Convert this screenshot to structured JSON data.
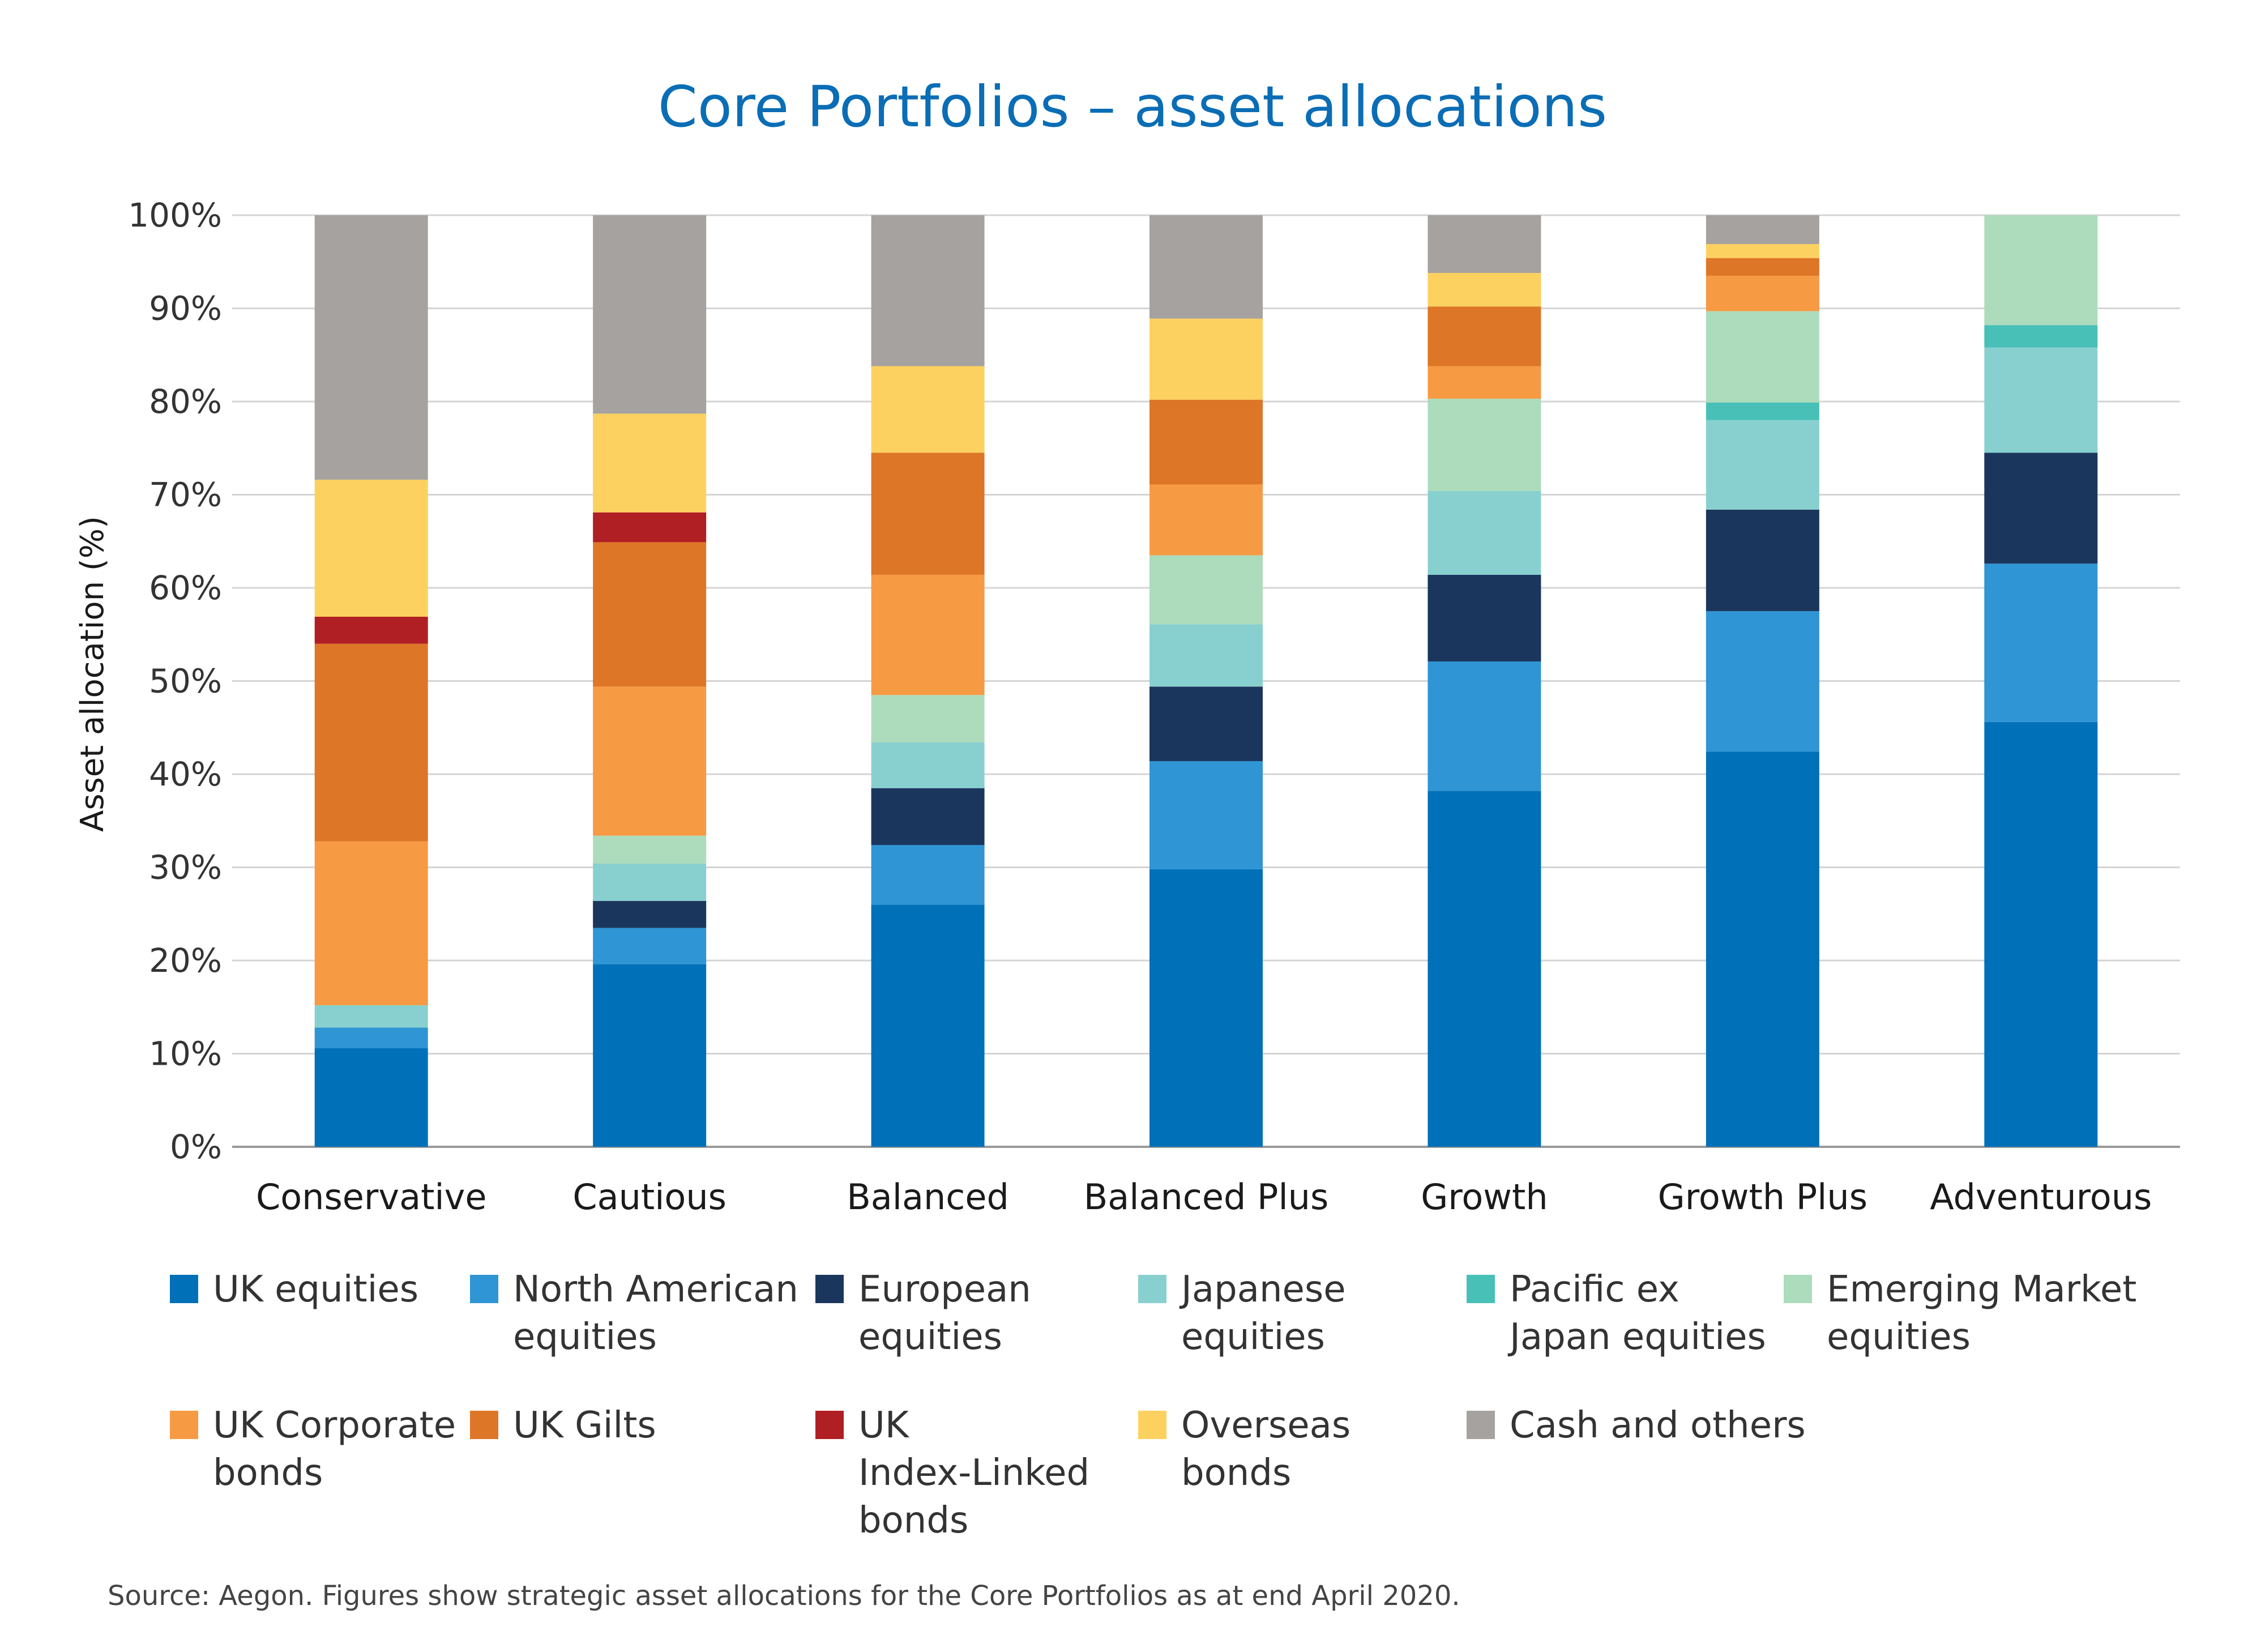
{
  "chart_data": {
    "type": "bar",
    "stacked": true,
    "title": "Core Portfolios – asset allocations",
    "ylabel": "Asset allocation (%)",
    "xlabel": "",
    "ylim": [
      0,
      100
    ],
    "yticks": [
      "0%",
      "10%",
      "20%",
      "30%",
      "40%",
      "50%",
      "60%",
      "70%",
      "80%",
      "90%",
      "100%"
    ],
    "grid": true,
    "legend_position": "bottom",
    "categories": [
      "Conservative",
      "Cautious",
      "Balanced",
      "Balanced Plus",
      "Growth",
      "Growth Plus",
      "Adventurous"
    ],
    "series": [
      {
        "name": "UK equities",
        "color": "#0070b8",
        "values": [
          10.6,
          19.6,
          26.0,
          29.8,
          38.2,
          42.4,
          45.6
        ]
      },
      {
        "name": "North American equities",
        "color": "#2f95d4",
        "values": [
          2.2,
          3.9,
          6.4,
          11.6,
          13.9,
          15.1,
          17.0
        ]
      },
      {
        "name": "European equities",
        "color": "#1b365d",
        "values": [
          0.0,
          2.9,
          6.1,
          8.0,
          9.3,
          10.9,
          11.9
        ]
      },
      {
        "name": "Japanese equities",
        "color": "#88d0cf",
        "values": [
          2.4,
          4.0,
          4.9,
          6.7,
          9.0,
          9.6,
          11.3
        ]
      },
      {
        "name": "Pacific ex Japan equities",
        "color": "#48c0b8",
        "values": [
          0.0,
          0.0,
          0.0,
          0.0,
          0.0,
          1.9,
          2.4
        ]
      },
      {
        "name": "Emerging Market equities",
        "color": "#acdcbc",
        "values": [
          0.0,
          3.0,
          5.1,
          7.4,
          9.9,
          9.8,
          11.8
        ]
      },
      {
        "name": "UK Corporate bonds",
        "color": "#f79a44",
        "values": [
          17.6,
          16.0,
          12.9,
          7.6,
          3.5,
          3.8,
          0.0
        ]
      },
      {
        "name": "UK Gilts",
        "color": "#dd7627",
        "values": [
          21.2,
          15.5,
          13.1,
          9.1,
          6.4,
          1.9,
          0.0
        ]
      },
      {
        "name": "UK Index-Linked bonds",
        "color": "#b01f24",
        "values": [
          2.9,
          3.2,
          0.0,
          0.0,
          0.0,
          0.0,
          0.0
        ]
      },
      {
        "name": "Overseas bonds",
        "color": "#fdd160",
        "values": [
          14.7,
          10.6,
          9.3,
          8.7,
          3.6,
          1.5,
          0.0
        ]
      },
      {
        "name": "Cash and others",
        "color": "#a6a29f",
        "values": [
          28.4,
          21.3,
          16.2,
          11.1,
          6.2,
          3.1,
          0.0
        ]
      }
    ]
  },
  "legend": [
    {
      "label": "UK equities"
    },
    {
      "label": "North American\nequities"
    },
    {
      "label": "European\nequities"
    },
    {
      "label": "Japanese\nequities"
    },
    {
      "label": "Pacific ex\nJapan equities"
    },
    {
      "label": "Emerging Market\nequities"
    },
    {
      "label": "UK Corporate\nbonds"
    },
    {
      "label": "UK Gilts"
    },
    {
      "label": "UK\nIndex-Linked\nbonds"
    },
    {
      "label": "Overseas\nbonds"
    },
    {
      "label": "Cash and others"
    }
  ],
  "source": "Source: Aegon. Figures show strategic asset allocations for the Core Portfolios as at end April 2020."
}
